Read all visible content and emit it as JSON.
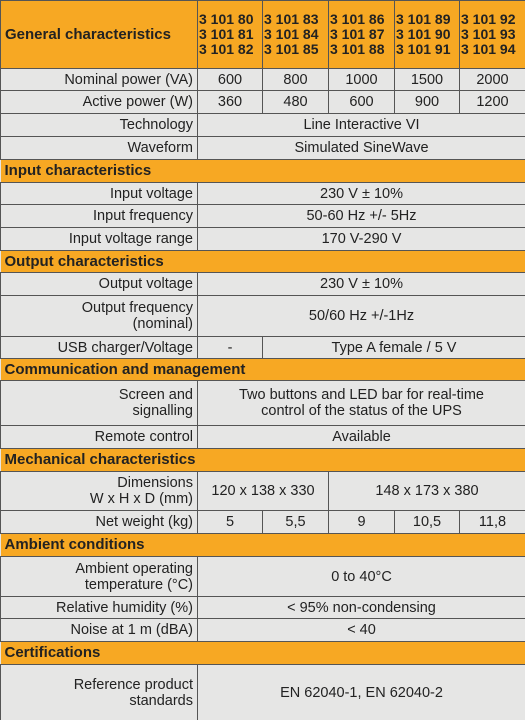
{
  "header": {
    "title": "General characteristics",
    "models": [
      [
        "3 101 80",
        "3 101 81",
        "3 101 82"
      ],
      [
        "3 101 83",
        "3 101 84",
        "3 101 85"
      ],
      [
        "3 101 86",
        "3 101 87",
        "3 101 88"
      ],
      [
        "3 101 89",
        "3 101 90",
        "3 101 91"
      ],
      [
        "3 101 92",
        "3 101 93",
        "3 101 94"
      ]
    ]
  },
  "general_rows": [
    {
      "label": "Nominal power (VA)",
      "cells": [
        "600",
        "800",
        "1000",
        "1500",
        "2000"
      ]
    },
    {
      "label": "Active power (W)",
      "cells": [
        "360",
        "480",
        "600",
        "900",
        "1200"
      ]
    },
    {
      "label": "Technology",
      "cells": [
        "Line Interactive VI"
      ]
    },
    {
      "label": "Waveform",
      "cells": [
        "Simulated SineWave"
      ]
    }
  ],
  "sections": [
    {
      "title": "Input characteristics",
      "rows": [
        {
          "label": "Input voltage",
          "cells": [
            "230 V ± 10%"
          ]
        },
        {
          "label": "Input frequency",
          "cells": [
            "50-60 Hz +/- 5Hz"
          ]
        },
        {
          "label": "Input voltage range",
          "cells": [
            "170 V-290 V"
          ]
        }
      ]
    },
    {
      "title": "Output characteristics",
      "rows": [
        {
          "label": "Output voltage",
          "cells": [
            "230 V ± 10%"
          ]
        },
        {
          "label": "Output frequency\n(nominal)",
          "cells": [
            "50/60 Hz +/-1Hz"
          ]
        },
        {
          "label": "USB charger/Voltage",
          "cells": [
            "-",
            "Type A female / 5 V"
          ]
        }
      ]
    },
    {
      "title": "Communication and management",
      "rows": [
        {
          "label": "Screen and\nsignalling",
          "cells": [
            "Two buttons and LED bar for real-time\ncontrol of the status of the UPS"
          ]
        },
        {
          "label": "Remote control",
          "cells": [
            "Available"
          ]
        }
      ]
    },
    {
      "title": "Mechanical characteristics",
      "rows": [
        {
          "label": "Dimensions\nW x H x D (mm)",
          "cells": [
            "120 x 138 x 330",
            "148 x 173 x 380"
          ]
        },
        {
          "label": "Net weight (kg)",
          "cells": [
            "5",
            "5,5",
            "9",
            "10,5",
            "11,8"
          ]
        }
      ]
    },
    {
      "title": "Ambient conditions",
      "rows": [
        {
          "label": "Ambient operating\ntemperature (°C)",
          "cells": [
            "0 to 40°C"
          ]
        },
        {
          "label": "Relative humidity (%)",
          "cells": [
            "< 95% non-condensing"
          ]
        },
        {
          "label": "Noise at 1 m (dBA)",
          "cells": [
            "< 40"
          ]
        }
      ]
    },
    {
      "title": "Certifications",
      "rows": [
        {
          "label": "Reference product\nstandards",
          "cells": [
            "EN 62040-1, EN 62040-2"
          ]
        }
      ]
    }
  ]
}
